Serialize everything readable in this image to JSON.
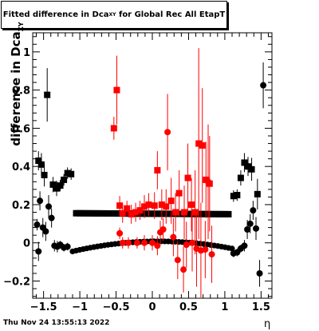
{
  "title": {
    "main": "Fitted difference in Dca",
    "sub": "XY",
    "rest": " for Global Rec All EtapT"
  },
  "ylabel": {
    "main": "difference in Dca",
    "sub": "XY"
  },
  "xlabel": "η",
  "timestamp": "Thu Nov 24 13:55:13 2022",
  "chart_data": {
    "type": "scatter",
    "xlim": [
      -1.65,
      1.65
    ],
    "ylim": [
      -0.29,
      1.1
    ],
    "xticks": [
      {
        "v": -1.5,
        "label": "−1.5"
      },
      {
        "v": -1.0,
        "label": "−1"
      },
      {
        "v": -0.5,
        "label": "−0.5"
      },
      {
        "v": 0.0,
        "label": "0"
      },
      {
        "v": 0.5,
        "label": "0.5"
      },
      {
        "v": 1.0,
        "label": "1"
      },
      {
        "v": 1.5,
        "label": "1.5"
      }
    ],
    "yticks": [
      {
        "v": -0.2,
        "label": "−0.2"
      },
      {
        "v": 0.0,
        "label": "0"
      },
      {
        "v": 0.2,
        "label": "0.2"
      },
      {
        "v": 0.4,
        "label": "0.4"
      },
      {
        "v": 0.6,
        "label": "0.6"
      },
      {
        "v": 0.8,
        "label": "0.8"
      },
      {
        "v": 1.0,
        "label": "1"
      }
    ],
    "colors": {
      "black": "#000000",
      "red": "#ff0000"
    },
    "series": [
      {
        "marker": "square",
        "color": "#000000",
        "points": [
          [
            -1.57,
            0.43,
            0.05
          ],
          [
            -1.53,
            0.41,
            0.06
          ],
          [
            -1.49,
            0.355,
            0.06
          ],
          [
            -1.45,
            0.775,
            0.14
          ],
          [
            -1.37,
            0.305,
            0.04
          ],
          [
            -1.32,
            0.285,
            0.04
          ],
          [
            -1.27,
            0.3,
            0.03
          ],
          [
            -1.22,
            0.33,
            0.03
          ],
          [
            -1.17,
            0.365,
            0.03
          ],
          [
            -1.12,
            0.36,
            0.03
          ],
          [
            1.12,
            0.245,
            0.03
          ],
          [
            1.17,
            0.25,
            0.03
          ],
          [
            1.22,
            0.34,
            0.04
          ],
          [
            1.27,
            0.42,
            0.05
          ],
          [
            1.32,
            0.4,
            0.05
          ],
          [
            1.37,
            0.385,
            0.06
          ],
          [
            1.45,
            0.255,
            0.08
          ]
        ],
        "band": {
          "x0": -1.05,
          "x1": 1.05,
          "y0": 0.155,
          "y1": 0.15,
          "sag": 0.0
        }
      },
      {
        "marker": "circle",
        "color": "#000000",
        "points": [
          [
            -1.59,
            0.095,
            0.03
          ],
          [
            -1.55,
            0.22,
            0.05
          ],
          [
            -1.51,
            0.08,
            0.05
          ],
          [
            -1.47,
            0.06,
            0.05
          ],
          [
            -1.43,
            0.19,
            0.06
          ],
          [
            -1.39,
            0.13,
            0.05
          ],
          [
            -1.57,
            -0.045,
            0.05
          ],
          [
            -1.35,
            -0.015,
            0.03
          ],
          [
            -1.31,
            -0.02,
            0.03
          ],
          [
            -1.27,
            -0.01,
            0.02
          ],
          [
            -1.22,
            -0.025,
            0.02
          ],
          [
            -1.17,
            -0.02,
            0.02
          ],
          [
            1.12,
            -0.055,
            0.02
          ],
          [
            1.17,
            -0.05,
            0.02
          ],
          [
            1.22,
            -0.03,
            0.02
          ],
          [
            1.27,
            -0.015,
            0.03
          ],
          [
            1.31,
            0.07,
            0.05
          ],
          [
            1.35,
            0.1,
            0.05
          ],
          [
            1.39,
            0.17,
            0.05
          ],
          [
            1.43,
            0.075,
            0.06
          ],
          [
            1.48,
            -0.16,
            0.07
          ],
          [
            1.53,
            0.825,
            0.12
          ]
        ],
        "band": {
          "x0": -1.1,
          "x1": 1.1,
          "y0": -0.045,
          "y1": -0.03,
          "sag": 0.045
        }
      },
      {
        "marker": "square",
        "color": "#ff0000",
        "points": [
          [
            -0.53,
            0.6,
            0.06
          ],
          [
            -0.49,
            0.8,
            0.18
          ],
          [
            -0.45,
            0.195,
            0.05
          ],
          [
            -0.41,
            0.155,
            0.05
          ],
          [
            -0.35,
            0.18,
            0.04
          ],
          [
            -0.29,
            0.15,
            0.05
          ],
          [
            -0.23,
            0.16,
            0.05
          ],
          [
            -0.17,
            0.17,
            0.05
          ],
          [
            -0.11,
            0.19,
            0.06
          ],
          [
            -0.05,
            0.2,
            0.06
          ],
          [
            0.03,
            0.195,
            0.07
          ],
          [
            0.07,
            0.38,
            0.1
          ],
          [
            0.13,
            0.2,
            0.08
          ],
          [
            0.19,
            0.19,
            0.09
          ],
          [
            0.26,
            0.22,
            0.12
          ],
          [
            0.32,
            0.16,
            0.1
          ],
          [
            0.37,
            0.26,
            0.12
          ],
          [
            0.44,
            0.16,
            0.14
          ],
          [
            0.49,
            0.34,
            0.18
          ],
          [
            0.54,
            0.2,
            0.14
          ],
          [
            0.59,
            0.16,
            0.22
          ],
          [
            0.64,
            0.52,
            0.5
          ],
          [
            0.69,
            0.51,
            0.3
          ],
          [
            0.74,
            0.33,
            0.2
          ],
          [
            0.79,
            0.31,
            0.25
          ]
        ]
      },
      {
        "marker": "circle",
        "color": "#ff0000",
        "points": [
          [
            -0.45,
            0.05,
            0.03
          ],
          [
            -0.41,
            0.0,
            0.03
          ],
          [
            -0.33,
            0.0,
            0.03
          ],
          [
            -0.21,
            0.0,
            0.03
          ],
          [
            -0.11,
            0.0,
            0.04
          ],
          [
            0.0,
            0.0,
            0.04
          ],
          [
            0.07,
            -0.015,
            0.05
          ],
          [
            0.11,
            0.055,
            0.06
          ],
          [
            0.15,
            0.07,
            0.06
          ],
          [
            0.21,
            0.58,
            0.2
          ],
          [
            0.29,
            0.03,
            0.1
          ],
          [
            0.35,
            -0.09,
            0.1
          ],
          [
            0.43,
            -0.14,
            0.12
          ],
          [
            0.47,
            -0.01,
            0.12
          ],
          [
            0.55,
            0.0,
            0.15
          ],
          [
            0.61,
            -0.03,
            0.2
          ],
          [
            0.67,
            -0.04,
            0.25
          ],
          [
            0.73,
            -0.035,
            0.15
          ],
          [
            0.77,
            0.32,
            0.3
          ],
          [
            0.82,
            -0.06,
            0.15
          ]
        ]
      }
    ]
  }
}
